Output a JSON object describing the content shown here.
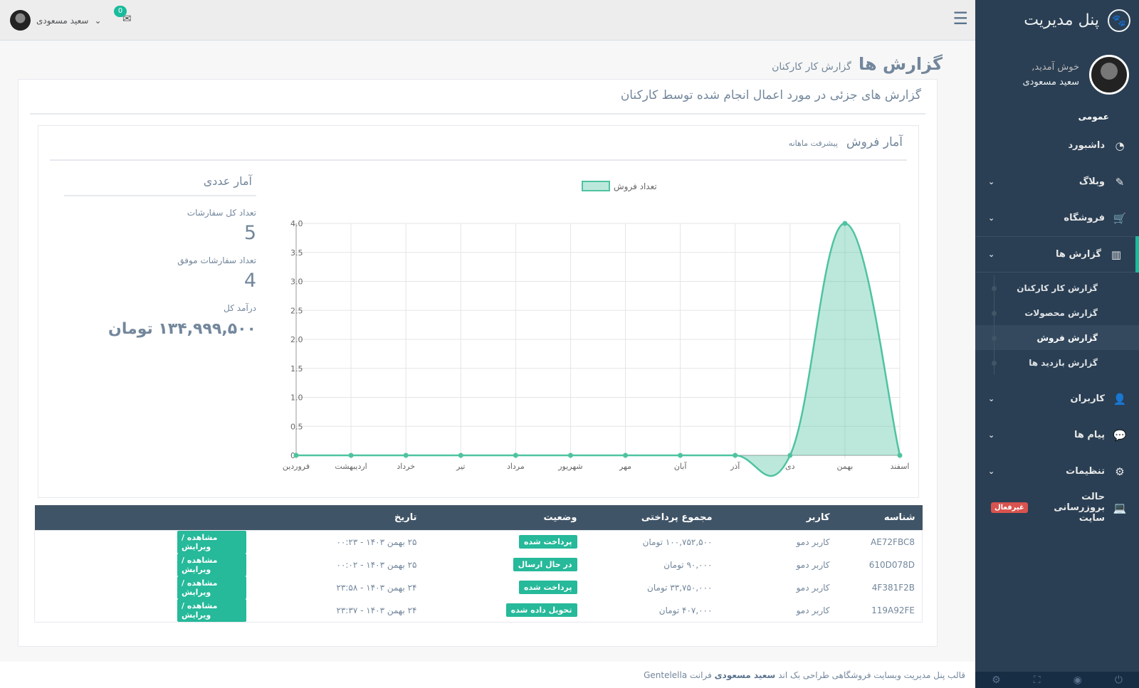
{
  "sidebar": {
    "brand_title": "پنل مدیریت",
    "brand_icon": "paw-icon",
    "welcome": "خوش آمدید,",
    "username": "سعید مسعودی",
    "section_general": "عمومی",
    "items": [
      {
        "label": "داشبورد",
        "icon": "dashboard-icon"
      },
      {
        "label": "وبلاگ",
        "icon": "edit-icon"
      },
      {
        "label": "فروشگاه",
        "icon": "cart-icon"
      },
      {
        "label": "گزارش ها",
        "icon": "bar-chart-icon"
      },
      {
        "label": "کاربران",
        "icon": "user-icon"
      },
      {
        "label": "پیام ها",
        "icon": "comments-icon"
      },
      {
        "label": "تنظیمات",
        "icon": "gear-icon"
      },
      {
        "label": "حالت بروزرسانی سایت",
        "icon": "laptop-icon"
      }
    ],
    "maintenance_badge": "غیرفعال",
    "reports_submenu": [
      {
        "label": "گزارش کار کارکنان"
      },
      {
        "label": "گزارش محصولات"
      },
      {
        "label": "گزارش فروش"
      },
      {
        "label": "گزارش بازدید ها"
      }
    ]
  },
  "topnav": {
    "username": "سعید مسعودی",
    "mail_count": "0"
  },
  "page": {
    "title": "گزارش ها",
    "subtitle": "گزارش کار کارکنان",
    "panel_title": "گزارش های جزئی در مورد اعمال انجام شده توسط کارکنان",
    "sales_title": "آمار فروش",
    "sales_subtitle": "پیشرفت ماهانه"
  },
  "stats": {
    "title": "آمار عددی",
    "total_orders_label": "تعداد کل سفارشات",
    "total_orders": "5",
    "successful_orders_label": "تعداد سفارشات موفق",
    "successful_orders": "4",
    "revenue_label": "درآمد کل",
    "revenue": "۱۳۴,۹۹۹,۵۰۰ تومان"
  },
  "chart_data": {
    "type": "area",
    "categories": [
      "فروردین",
      "اردیبهشت",
      "خرداد",
      "تیر",
      "مرداد",
      "شهریور",
      "مهر",
      "آبان",
      "آذر",
      "دی",
      "بهمن",
      "اسفند"
    ],
    "series": [
      {
        "name": "تعداد فروش",
        "values": [
          0,
          0,
          0,
          0,
          0,
          0,
          0,
          0,
          0,
          0,
          4,
          0
        ]
      }
    ],
    "ylim": [
      0,
      4
    ],
    "yticks": [
      "0",
      "0.5",
      "1.0",
      "1.5",
      "2.0",
      "2.5",
      "3.0",
      "3.5",
      "4.0"
    ],
    "grid": true,
    "legend": "top",
    "color": "#4FC3A1"
  },
  "table": {
    "headers": [
      "شناسه",
      "کاربر",
      "مجموع پرداختی",
      "وضعیت",
      "تاریخ",
      ""
    ],
    "rows": [
      {
        "id": "AE72FBC8",
        "user": "کاربر دمو",
        "total": "۱۰۰,۷۵۲,۵۰۰ تومان",
        "status": "پرداخت شده",
        "date": "۲۵ بهمن ۱۴۰۳ - ۰۰:۲۳",
        "action": "مشاهده / ویرایش"
      },
      {
        "id": "610D078D",
        "user": "کاربر دمو",
        "total": "۹۰,۰۰۰ تومان",
        "status": "در حال ارسال",
        "date": "۲۵ بهمن ۱۴۰۳ - ۰۰:۰۲",
        "action": "مشاهده / ویرایش"
      },
      {
        "id": "4F381F2B",
        "user": "کاربر دمو",
        "total": "۳۳,۷۵۰,۰۰۰ تومان",
        "status": "پرداخت شده",
        "date": "۲۴ بهمن ۱۴۰۳ - ۲۳:۵۸",
        "action": "مشاهده / ویرایش"
      },
      {
        "id": "119A92FE",
        "user": "کاربر دمو",
        "total": "۴۰۷,۰۰۰ تومان",
        "status": "تحویل داده شده",
        "date": "۲۴ بهمن ۱۴۰۳ - ۲۳:۳۷",
        "action": "مشاهده / ویرایش"
      }
    ]
  },
  "footer": {
    "text": "قالب پنل مدیریت وبسایت فروشگاهی طراحی بک اند",
    "author": "سعید مسعودی",
    "suffix": "فرانت Gentelella"
  }
}
